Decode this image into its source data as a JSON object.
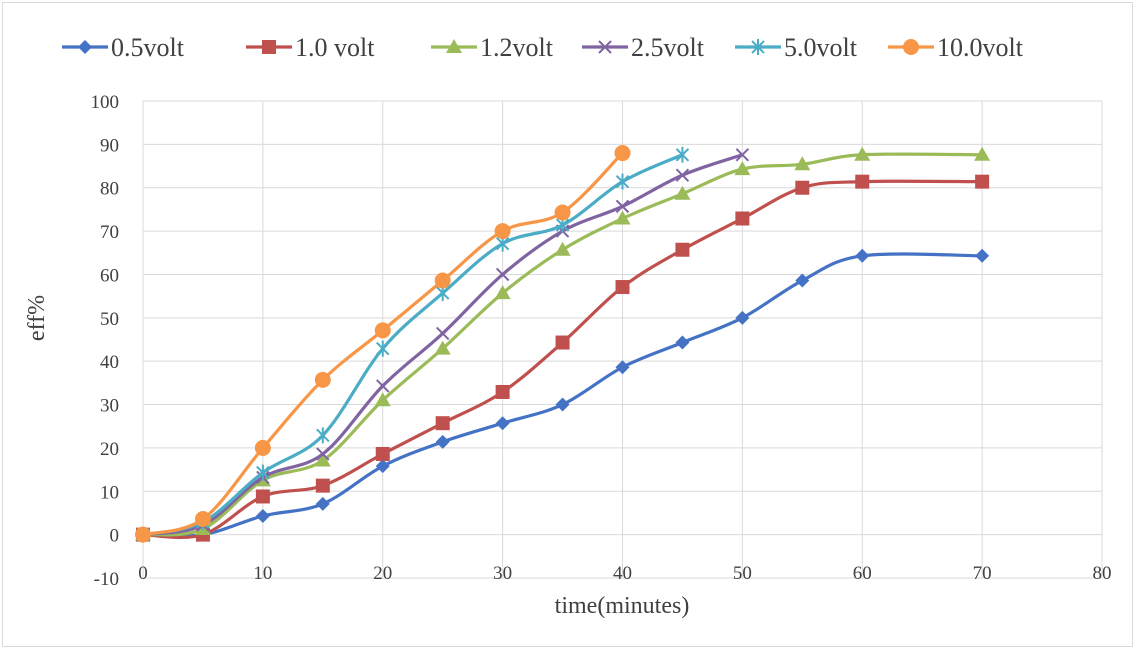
{
  "chart_data": {
    "type": "line",
    "xlabel": "time(minutes)",
    "ylabel": "eff%",
    "xlim": [
      0,
      80
    ],
    "ylim": [
      -10,
      100
    ],
    "x_ticks": [
      0,
      10,
      20,
      30,
      40,
      50,
      60,
      70,
      80
    ],
    "y_ticks": [
      -10,
      0,
      10,
      20,
      30,
      40,
      50,
      60,
      70,
      80,
      90,
      100
    ],
    "grid": true,
    "smooth": true,
    "legend_position": "top",
    "series": [
      {
        "name": "0.5volt",
        "color": "#4472c4",
        "marker": "diamond",
        "x": [
          0,
          5,
          10,
          15,
          20,
          25,
          30,
          35,
          40,
          45,
          50,
          55,
          60,
          70
        ],
        "y": [
          0,
          0,
          4.3,
          7.1,
          15.8,
          21.4,
          25.7,
          30,
          38.6,
          44.3,
          50,
          58.6,
          64.3,
          64.3
        ]
      },
      {
        "name": "1.0 volt",
        "color": "#c0504d",
        "marker": "square",
        "x": [
          0,
          5,
          10,
          15,
          20,
          25,
          30,
          35,
          40,
          45,
          50,
          55,
          60,
          70
        ],
        "y": [
          0,
          0,
          8.8,
          11.3,
          18.6,
          25.7,
          32.9,
          44.3,
          57.1,
          65.7,
          72.9,
          80,
          81.4,
          81.4
        ]
      },
      {
        "name": "1.2volt",
        "color": "#9bbb59",
        "marker": "triangle",
        "x": [
          0,
          5,
          10,
          15,
          20,
          25,
          30,
          35,
          40,
          45,
          50,
          55,
          60,
          70
        ],
        "y": [
          0,
          1.3,
          12.5,
          17.1,
          31,
          42.9,
          55.7,
          65.7,
          72.9,
          78.6,
          84.3,
          85.4,
          87.6,
          87.6
        ]
      },
      {
        "name": "2.5volt",
        "color": "#8064a2",
        "marker": "x",
        "x": [
          0,
          5,
          10,
          15,
          20,
          25,
          30,
          35,
          40,
          45,
          50
        ],
        "y": [
          0,
          2.2,
          13.2,
          18.6,
          34.3,
          46.4,
          60,
          70,
          75.7,
          82.9,
          87.6
        ]
      },
      {
        "name": "5.0volt",
        "color": "#4bacc6",
        "marker": "star",
        "x": [
          0,
          5,
          10,
          15,
          20,
          25,
          30,
          35,
          40,
          45
        ],
        "y": [
          0,
          2.9,
          14.3,
          22.9,
          42.9,
          55.7,
          67.1,
          71.4,
          81.4,
          87.6
        ]
      },
      {
        "name": "10.0volt",
        "color": "#f79646",
        "marker": "circle",
        "x": [
          0,
          5,
          10,
          15,
          20,
          25,
          30,
          35,
          40
        ],
        "y": [
          0,
          3.6,
          20,
          35.7,
          47.1,
          58.6,
          70,
          74.3,
          88
        ]
      }
    ]
  }
}
